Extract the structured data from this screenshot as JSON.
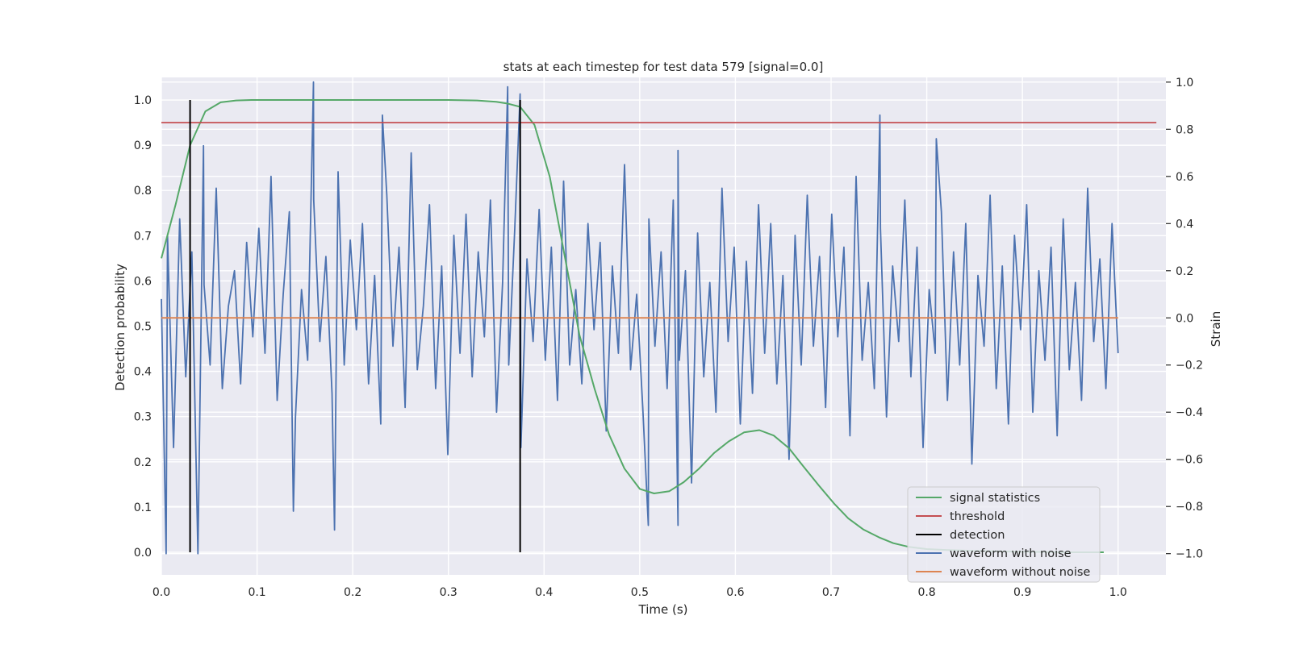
{
  "chart_data": {
    "type": "line",
    "title": "stats at each timestep for test data 579 [signal=0.0]",
    "xlabel": "Time (s)",
    "ylabel": "Detection probability",
    "y2label": "Strain",
    "xlim": [
      0.0,
      1.05
    ],
    "ylim": [
      -0.05,
      1.05
    ],
    "y2lim": [
      -1.09,
      1.02
    ],
    "xticks": [
      0.0,
      0.1,
      0.2,
      0.3,
      0.4,
      0.5,
      0.6,
      0.7,
      0.8,
      0.9,
      1.0
    ],
    "yticks": [
      0.0,
      0.1,
      0.2,
      0.3,
      0.4,
      0.5,
      0.6,
      0.7,
      0.8,
      0.9,
      1.0
    ],
    "y2ticks": [
      -1.0,
      -0.8,
      -0.6,
      -0.4,
      -0.2,
      0.0,
      0.2,
      0.4,
      0.6,
      0.8,
      1.0
    ],
    "grid": true,
    "legend_position": "bottom-right",
    "colors": {
      "plot_bg": "#eaeaf2",
      "grid": "#ffffff",
      "signal_statistics": "#55a868",
      "threshold": "#c44e52",
      "detection": "#000000",
      "waveform_with_noise": "#4c72b0",
      "waveform_without_noise": "#dd8452"
    },
    "legend": [
      {
        "label": "signal statistics",
        "series": "signal_statistics"
      },
      {
        "label": "threshold",
        "series": "threshold"
      },
      {
        "label": "detection",
        "series": "detection"
      },
      {
        "label": "waveform with noise",
        "series": "waveform_with_noise"
      },
      {
        "label": "waveform without noise",
        "series": "waveform_without_noise"
      }
    ],
    "series": {
      "signal_statistics": {
        "axis": "left",
        "x": [
          0.0,
          0.015,
          0.03,
          0.046,
          0.062,
          0.078,
          0.094,
          0.11,
          0.2,
          0.3,
          0.33,
          0.35,
          0.362,
          0.375,
          0.39,
          0.406,
          0.422,
          0.437,
          0.453,
          0.468,
          0.484,
          0.5,
          0.515,
          0.531,
          0.546,
          0.562,
          0.578,
          0.593,
          0.609,
          0.625,
          0.64,
          0.656,
          0.671,
          0.687,
          0.703,
          0.718,
          0.734,
          0.75,
          0.765,
          0.781,
          0.8,
          0.82,
          0.85,
          0.9,
          0.95,
          0.985
        ],
        "values": [
          0.65,
          0.77,
          0.9,
          0.975,
          0.995,
          0.999,
          1.0,
          1.0,
          1.0,
          1.0,
          0.999,
          0.996,
          0.992,
          0.985,
          0.945,
          0.83,
          0.65,
          0.48,
          0.36,
          0.26,
          0.185,
          0.14,
          0.13,
          0.135,
          0.155,
          0.185,
          0.22,
          0.245,
          0.265,
          0.27,
          0.258,
          0.23,
          0.19,
          0.148,
          0.108,
          0.075,
          0.05,
          0.033,
          0.02,
          0.012,
          0.007,
          0.005,
          0.003,
          0.001,
          0.0,
          0.0
        ]
      },
      "threshold": {
        "axis": "left",
        "value": 0.95,
        "x_range": [
          0.0,
          1.04
        ]
      },
      "detection": {
        "axis": "left",
        "x": [
          0.03,
          0.375
        ],
        "y_range": [
          0.0,
          1.0
        ]
      },
      "waveform_with_noise": {
        "axis": "right",
        "x_range": [
          0.0,
          1.0
        ],
        "values": [
          0.08,
          0.35,
          -0.55,
          0.42,
          -0.25,
          0.28,
          -1.0,
          0.14,
          -0.2,
          0.55,
          -0.3,
          0.05,
          0.2,
          -0.28,
          0.32,
          -0.08,
          0.38,
          -0.15,
          0.6,
          -0.35,
          0.1,
          0.45,
          -0.42,
          0.12,
          -0.18,
          0.5,
          -0.1,
          0.26,
          -0.32,
          0.62,
          -0.2,
          0.33,
          -0.05,
          0.4,
          -0.28,
          0.18,
          -0.45,
          0.52,
          -0.12,
          0.3,
          -0.38,
          0.7,
          -0.22,
          0.05,
          0.48,
          -0.3,
          0.22,
          -0.58,
          0.35,
          -0.15,
          0.44,
          -0.25,
          0.28,
          -0.08,
          0.5,
          -0.4,
          0.15,
          -0.2,
          0.38,
          -0.55,
          0.25,
          -0.1,
          0.46,
          -0.18,
          0.3,
          -0.35,
          0.58,
          -0.2,
          0.12,
          -0.28,
          0.4,
          -0.05,
          0.32,
          -0.48,
          0.22,
          -0.15,
          0.65,
          -0.22,
          0.1,
          -0.38,
          0.42,
          -0.12,
          0.28,
          -0.3,
          0.5,
          -0.18,
          0.2,
          -0.7,
          0.36,
          -0.25,
          0.15,
          -0.4,
          0.55,
          -0.1,
          0.3,
          -0.45,
          0.24,
          -0.32,
          0.48,
          -0.15,
          0.4,
          -0.28,
          0.18,
          -0.6,
          0.35,
          -0.2,
          0.52,
          -0.12,
          0.26,
          -0.38,
          0.44,
          -0.08,
          0.3,
          -0.5,
          0.6,
          -0.18,
          0.15,
          -0.3,
          0.38,
          -0.42,
          0.22,
          -0.1,
          0.5,
          -0.25,
          0.3,
          -0.55,
          0.12,
          -0.15,
          0.45,
          -0.35,
          0.28,
          -0.2,
          0.4,
          -0.62,
          0.18,
          -0.12,
          0.52,
          -0.3,
          0.22,
          -0.45,
          0.35,
          -0.05,
          0.48,
          -0.4,
          0.2,
          -0.18,
          0.3,
          -0.5,
          0.42,
          -0.22,
          0.15,
          -0.35,
          0.55,
          -0.1,
          0.25,
          -0.3,
          0.4,
          -0.15
        ],
        "markers": [
          {
            "x": 0.005,
            "value": -1.0
          },
          {
            "x": 0.044,
            "value": 0.73
          },
          {
            "x": 0.138,
            "value": -0.82
          },
          {
            "x": 0.159,
            "value": 1.0
          },
          {
            "x": 0.181,
            "value": -0.9
          },
          {
            "x": 0.231,
            "value": 0.86
          },
          {
            "x": 0.362,
            "value": 0.98
          },
          {
            "x": 0.375,
            "value": 0.95
          },
          {
            "x": 0.509,
            "value": -0.88
          },
          {
            "x": 0.54,
            "value": -0.88
          },
          {
            "x": 0.54,
            "value": 0.71
          },
          {
            "x": 0.751,
            "value": 0.86
          },
          {
            "x": 0.81,
            "value": 0.76
          }
        ]
      },
      "waveform_without_noise": {
        "axis": "right",
        "value": 0.0,
        "x_range": [
          0.0,
          1.0
        ]
      }
    }
  }
}
